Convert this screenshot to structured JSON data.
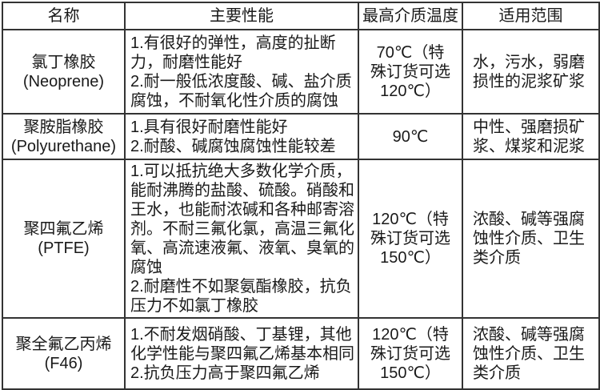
{
  "colors": {
    "border": "#333333",
    "text": "#1a1a1a",
    "background": "#ffffff"
  },
  "table": {
    "headers": [
      "名称",
      "主要性能",
      "最高介质温度",
      "适用范围"
    ],
    "rows": [
      {
        "name": "氯丁橡胶\n(Neoprene)",
        "properties": "1.有很好的弹性，高度的扯断力，耐磨性能好\n2.耐一般低浓度酸、碱、盐介质腐蚀，不耐氧化性介质的腐蚀",
        "max_temp": "70℃（特殊订货可选120℃）",
        "application": "水，污水，弱磨损性的泥浆矿浆"
      },
      {
        "name": "聚胺脂橡胶\n(Polyurethane)",
        "properties": "1.具有很好耐磨性能好\n2.耐酸、碱腐蚀腐蚀性能较差",
        "max_temp": "90℃",
        "application": "中性、强磨损矿浆、煤浆和泥浆"
      },
      {
        "name": "聚四氟乙烯\n(PTFE)",
        "properties": "1.可以抵抗绝大多数化学介质，能耐沸腾的盐酸、硫酸。硝酸和王水，也能耐浓碱和各种邮寄溶剂。不耐三氟化氯，高温三氟化氧、高流速液氟、液氧、臭氧的腐蚀\n2.耐磨性不如聚氨酯橡胶，抗负压力不如氯丁橡胶",
        "max_temp": "120℃（特殊订货可选150℃）",
        "application": "浓酸、碱等强腐蚀性介质、卫生类介质"
      },
      {
        "name": "聚全氟乙丙烯\n(F46)",
        "properties": "1.不耐发烟硝酸、丁基锂，其他化学性能与聚四氟乙烯基本相同\n2.抗负压力高于聚四氟乙烯",
        "max_temp": "120℃（特殊订货可选150℃）",
        "application": "浓酸、碱等强腐蚀性介质、卫生类介质"
      }
    ]
  }
}
